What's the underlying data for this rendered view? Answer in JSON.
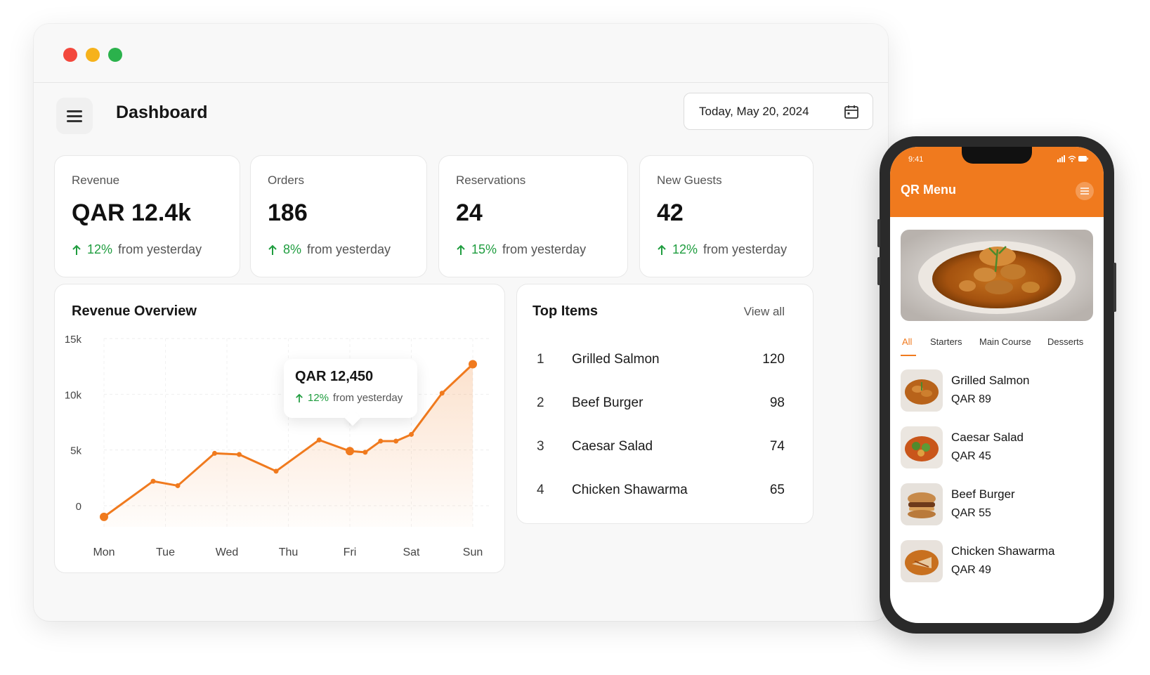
{
  "dashboard": {
    "title": "Dashboard",
    "date": "Today, May 20, 2024",
    "stats": [
      {
        "label": "Revenue",
        "value": "QAR 12.4k",
        "change": "12%",
        "suffix": "from yesterday"
      },
      {
        "label": "Orders",
        "value": "186",
        "change": "8%",
        "suffix": "from yesterday"
      },
      {
        "label": "Reservations",
        "value": "24",
        "change": "15%",
        "suffix": "from yesterday"
      },
      {
        "label": "New Guests",
        "value": "42",
        "change": "12%",
        "suffix": "from yesterday"
      }
    ],
    "colors": {
      "accent": "#f07a1e",
      "positive": "#1f9d3f"
    }
  },
  "revenue_overview": {
    "title": "Revenue Overview",
    "tooltip": {
      "value": "QAR 12,450",
      "change": "12%",
      "suffix": "from yesterday"
    }
  },
  "chart_data": {
    "type": "area",
    "title": "Revenue Overview",
    "xlabel": "",
    "ylabel": "",
    "y_tick_labels": [
      "0",
      "5k",
      "10k",
      "15k"
    ],
    "y_ticks": [
      0,
      5000,
      10000,
      15000
    ],
    "ylim": [
      0,
      15000
    ],
    "x_tick_labels": [
      "Mon",
      "Tue",
      "Wed",
      "Thu",
      "Fri",
      "Sat",
      "Sun"
    ],
    "x": [
      0,
      0.8,
      1.2,
      1.8,
      2.2,
      2.8,
      3.5,
      4,
      4.25,
      4.5,
      4.75,
      5,
      5.5,
      6
    ],
    "values": [
      -1000,
      2200,
      1800,
      4700,
      4600,
      3100,
      5900,
      4900,
      4800,
      5800,
      5800,
      6400,
      10100,
      12700
    ],
    "grid": true
  },
  "top_items": {
    "title": "Top Items",
    "view_all": "View all",
    "rows": [
      {
        "rank": "1",
        "name": "Grilled Salmon",
        "count": "120"
      },
      {
        "rank": "2",
        "name": "Beef Burger",
        "count": "98"
      },
      {
        "rank": "3",
        "name": "Caesar Salad",
        "count": "74"
      },
      {
        "rank": "4",
        "name": "Chicken Shawarma",
        "count": "65"
      }
    ]
  },
  "phone": {
    "time": "9:41",
    "app_title": "QR Menu",
    "tabs": [
      "All",
      "Starters",
      "Main Course",
      "Desserts"
    ],
    "items": [
      {
        "name": "Grilled Salmon",
        "price": "QAR 89"
      },
      {
        "name": "Caesar Salad",
        "price": "QAR 45"
      },
      {
        "name": "Beef Burger",
        "price": "QAR 55"
      },
      {
        "name": "Chicken Shawarma",
        "price": "QAR 49"
      }
    ]
  }
}
